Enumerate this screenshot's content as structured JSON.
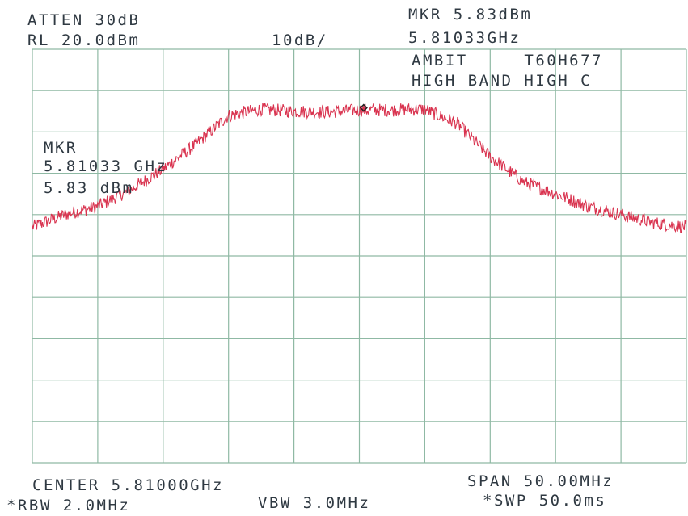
{
  "header": {
    "atten": "ATTEN 30dB",
    "ref_level": "RL 20.0dBm",
    "scale": "10dB/",
    "marker_level": "MKR 5.83dBm",
    "marker_freq": "5.81033GHz",
    "device": "AMBIT     T60H677",
    "condition": "HIGH BAND HIGH C"
  },
  "marker_box": {
    "title": "MKR",
    "freq": "5.81033 GHz",
    "level": "5.83 dBm"
  },
  "footer": {
    "center": "CENTER 5.81000GHz",
    "span": "SPAN 50.00MHz",
    "rbw": "*RBW 2.0MHz",
    "vbw": "VBW 3.0MHz",
    "sweep": "*SWP 50.0ms"
  },
  "colors": {
    "trace": "#d9334f",
    "grid": "#8fb9a4",
    "text": "#2f3942",
    "marker": "#222222"
  },
  "chart_data": {
    "type": "line",
    "title": "",
    "xlabel": "",
    "ylabel": "",
    "x_unit": "MHz offset from center",
    "y_unit": "dBm",
    "xlim": [
      -25,
      25
    ],
    "ylim": [
      -80,
      20
    ],
    "grid": true,
    "grid_divisions": {
      "x": 10,
      "y": 10
    },
    "series": [
      {
        "x": [
          -25,
          -22.5,
          -20,
          -17.5,
          -15,
          -12.5,
          -10,
          -7.5,
          -5,
          -2.5,
          0,
          2.5,
          5,
          7.5,
          10,
          12.5,
          15,
          17.5,
          20,
          22.5,
          25
        ],
        "y": [
          -23,
          -20,
          -18,
          -14,
          -9,
          -3,
          4,
          5.5,
          5,
          4.8,
          5.3,
          5.3,
          5.5,
          2,
          -6,
          -12,
          -15,
          -18,
          -20,
          -22,
          -23
        ]
      }
    ],
    "marker": {
      "x": 0.33,
      "y": 5.83
    }
  }
}
